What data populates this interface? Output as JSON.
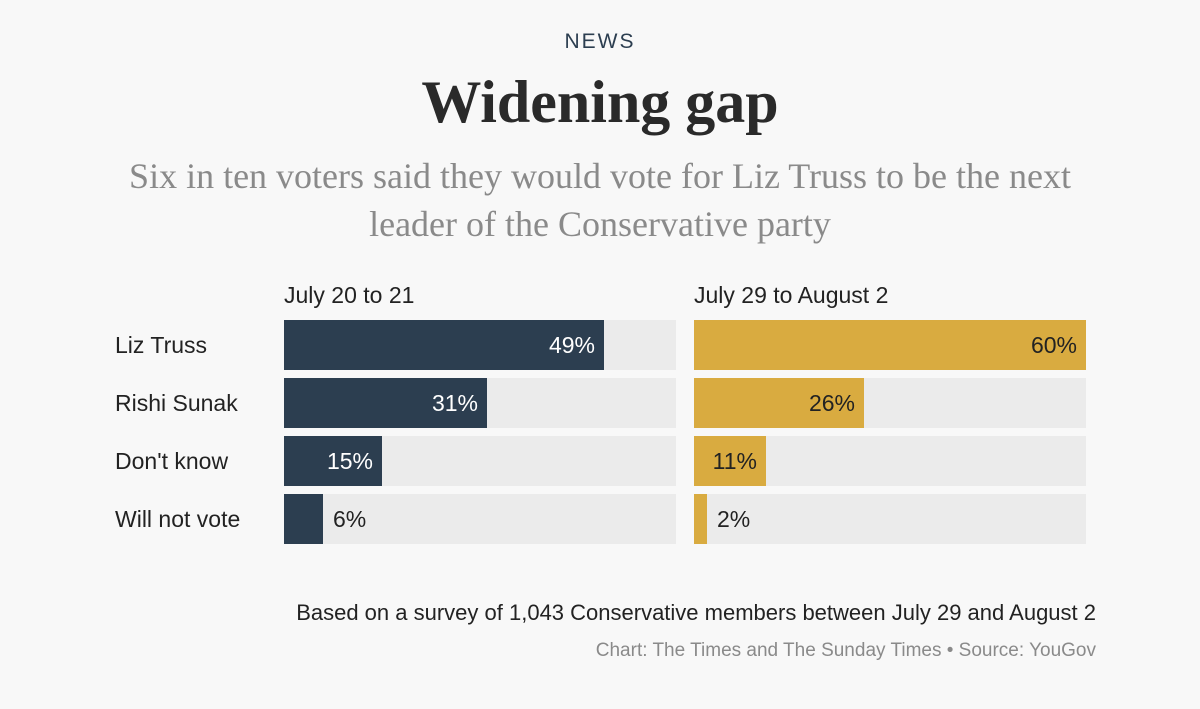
{
  "header": {
    "kicker": "NEWS",
    "title": "Widening gap",
    "subtitle": "Six in ten voters said they would vote for Liz Truss to be the next leader of the Conservative party"
  },
  "chart_data": {
    "type": "bar",
    "orientation": "horizontal",
    "title": "Widening gap",
    "subtitle": "Six in ten voters said they would vote for Liz Truss to be the next leader of the Conservative party",
    "categories": [
      "Liz Truss",
      "Rishi Sunak",
      "Don't know",
      "Will not vote"
    ],
    "unit": "%",
    "xlim": [
      0,
      60
    ],
    "grid": false,
    "series": [
      {
        "name": "July 20 to 21",
        "values": [
          49,
          31,
          15,
          6
        ],
        "color": "#2c3e50",
        "label_color": "#ffffff"
      },
      {
        "name": "July 29 to August 2",
        "values": [
          60,
          26,
          11,
          2
        ],
        "color": "#d9ab40",
        "label_color": "#222222"
      }
    ]
  },
  "footer": {
    "note": "Based on a survey of 1,043 Conservative members between July 29 and August 2",
    "credit": "Chart: The Times and The Sunday Times • Source: YouGov"
  },
  "colors": {
    "background": "#f8f8f8",
    "track": "#ebebeb",
    "series_1": "#2c3e50",
    "series_2": "#d9ab40"
  }
}
